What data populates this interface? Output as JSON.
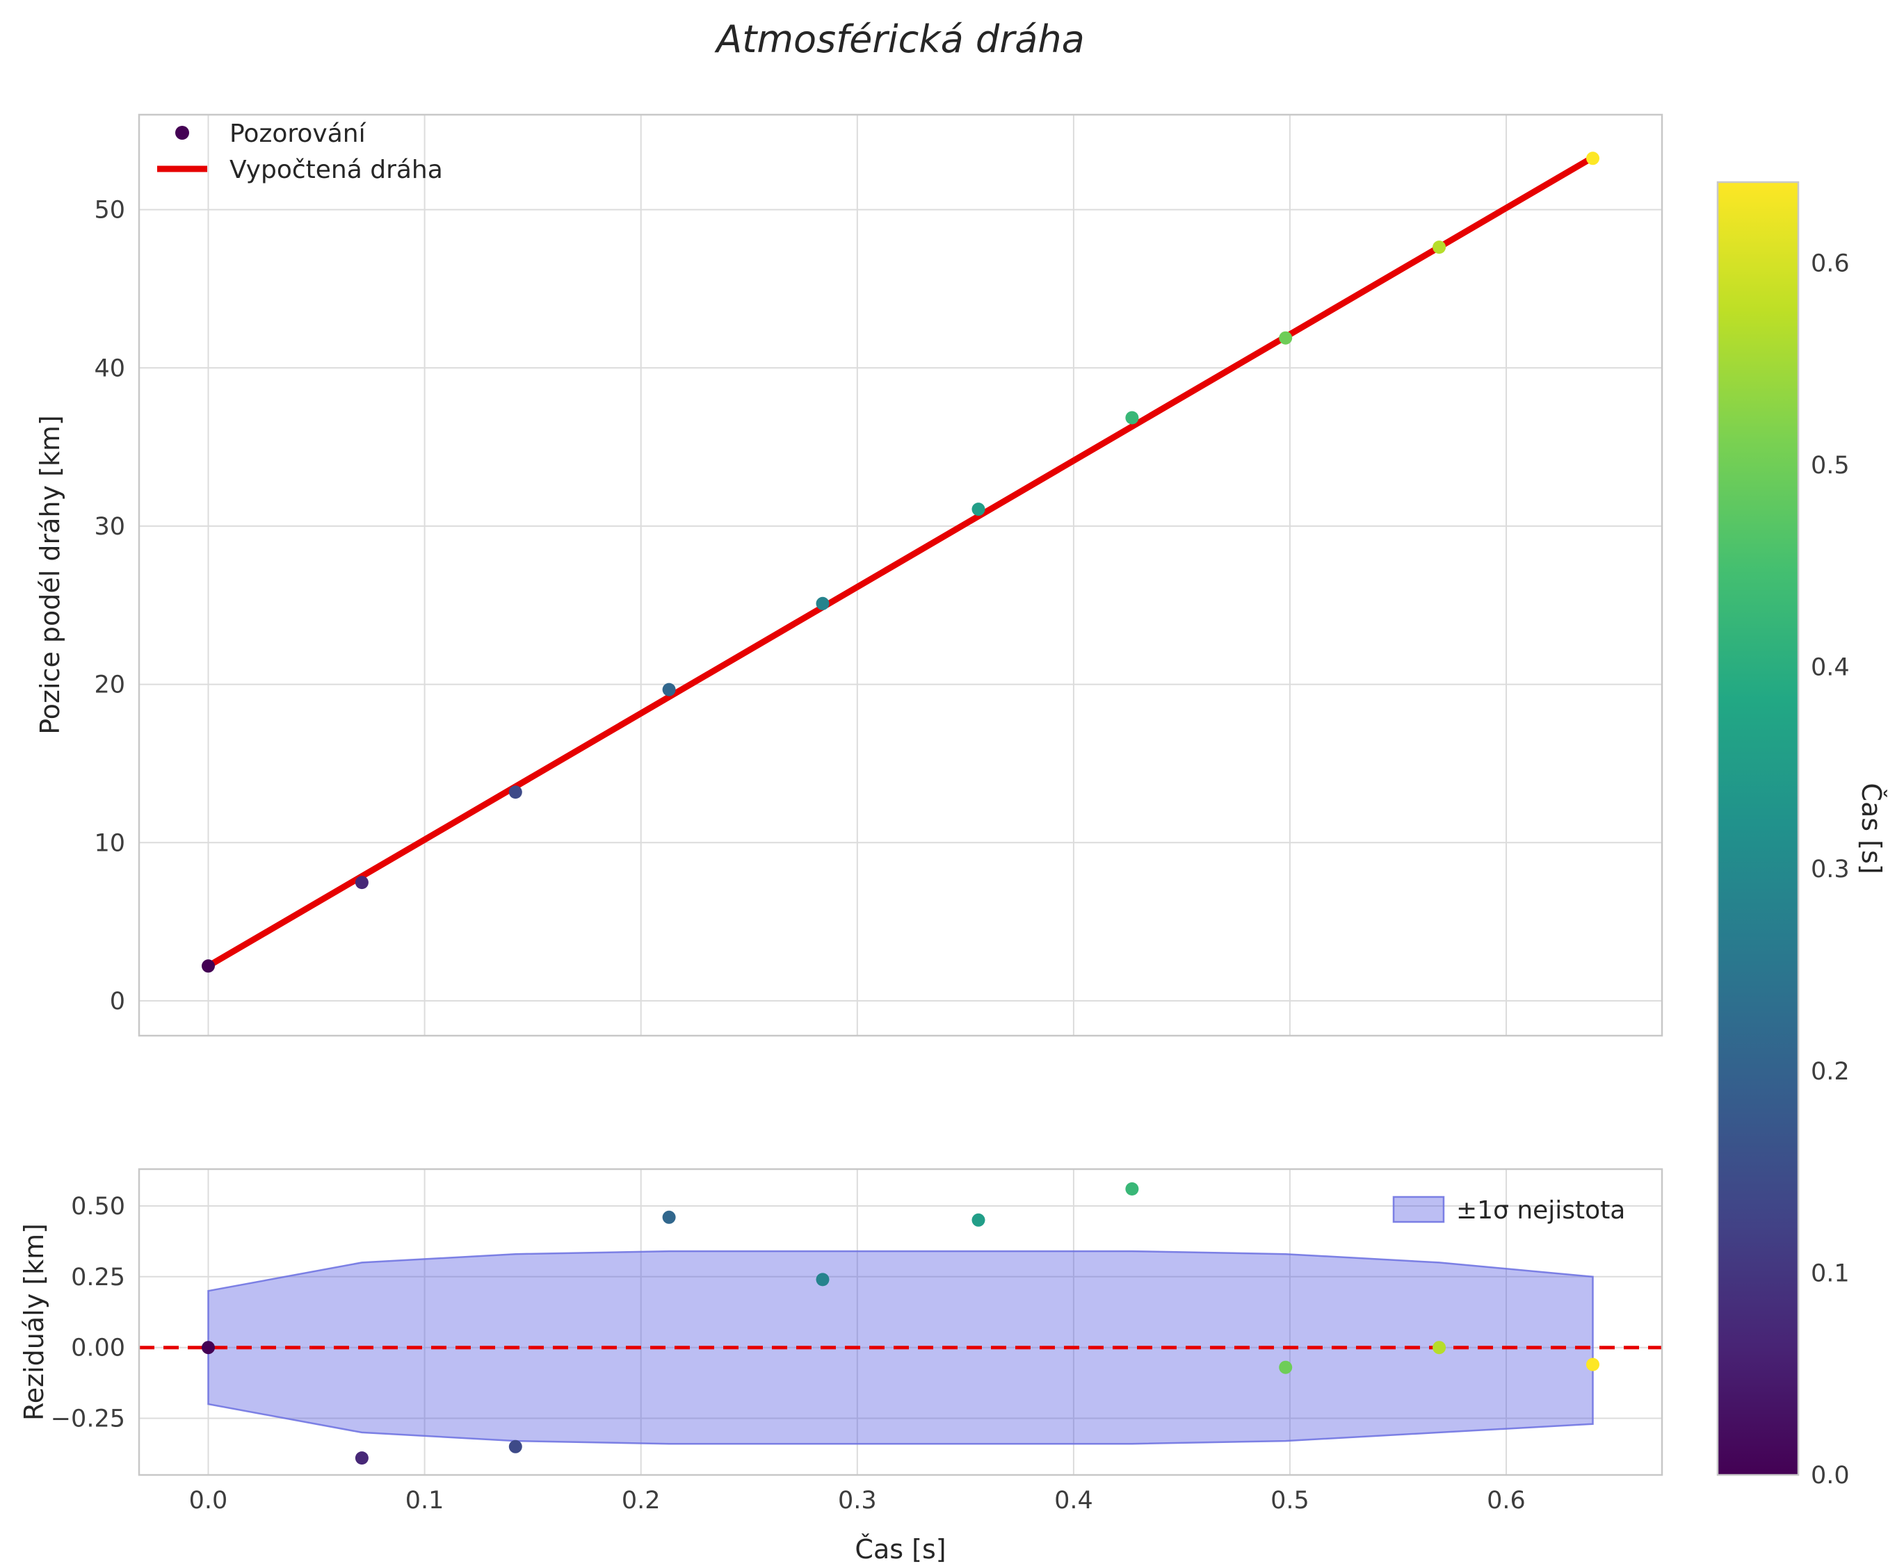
{
  "title": "Atmosférická dráha",
  "colorbar": {
    "label": "Čas [s]",
    "colormap": "viridis",
    "range": [
      0.0,
      0.64
    ],
    "ticks": [
      0.0,
      0.1,
      0.2,
      0.3,
      0.4,
      0.5,
      0.6
    ],
    "tick_labels": [
      "0.0",
      "0.1",
      "0.2",
      "0.3",
      "0.4",
      "0.5",
      "0.6"
    ]
  },
  "chart_data": [
    {
      "type": "scatter",
      "name": "trajectory",
      "title": "Atmosférická dráha",
      "xlabel": "",
      "ylabel": "Pozice podél dráhy [km]",
      "colored_by": "Čas [s]",
      "xlim": [
        -0.032,
        0.672
      ],
      "ylim": [
        -2.2,
        56.0
      ],
      "xticks": [
        0.0,
        0.1,
        0.2,
        0.3,
        0.4,
        0.5,
        0.6
      ],
      "xtick_labels": [
        "",
        "",
        "",
        "",
        "",
        "",
        ""
      ],
      "yticks": [
        0,
        10,
        20,
        30,
        40,
        50
      ],
      "ytick_labels": [
        "0",
        "10",
        "20",
        "30",
        "40",
        "50"
      ],
      "grid": true,
      "legend_position": "upper left",
      "points_label": "Pozorování",
      "x": [
        0.0,
        0.071,
        0.142,
        0.213,
        0.284,
        0.356,
        0.427,
        0.498,
        0.569,
        0.64
      ],
      "y": [
        2.2,
        7.48,
        13.19,
        19.67,
        25.11,
        31.07,
        36.85,
        41.89,
        47.63,
        53.24
      ],
      "fit_line": {
        "label": "Vypočtená dráha",
        "color": "#e60000",
        "x": [
          0.0,
          0.64
        ],
        "y": [
          2.2,
          53.3
        ]
      }
    },
    {
      "type": "scatter",
      "name": "residuals",
      "xlabel": "Čas [s]",
      "ylabel": "Reziduály [km]",
      "colored_by": "Čas [s]",
      "xlim": [
        -0.032,
        0.672
      ],
      "ylim": [
        -0.45,
        0.63
      ],
      "xticks": [
        0.0,
        0.1,
        0.2,
        0.3,
        0.4,
        0.5,
        0.6
      ],
      "xtick_labels": [
        "0.0",
        "0.1",
        "0.2",
        "0.3",
        "0.4",
        "0.5",
        "0.6"
      ],
      "yticks": [
        -0.25,
        0.0,
        0.25,
        0.5
      ],
      "ytick_labels": [
        "−0.25",
        "0.00",
        "0.25",
        "0.50"
      ],
      "grid": true,
      "legend_position": "upper right",
      "x": [
        0.0,
        0.071,
        0.142,
        0.213,
        0.284,
        0.356,
        0.427,
        0.498,
        0.569,
        0.64
      ],
      "y": [
        0.0,
        -0.39,
        -0.35,
        0.46,
        0.24,
        0.45,
        0.56,
        -0.07,
        0.0,
        -0.06
      ],
      "zero_line": {
        "color": "#e60000",
        "style": "dashed",
        "y": 0.0
      },
      "band": {
        "label": "±1σ nejistota",
        "upper": [
          0.2,
          0.3,
          0.33,
          0.34,
          0.34,
          0.34,
          0.34,
          0.33,
          0.3,
          0.25
        ],
        "lower": [
          -0.2,
          -0.3,
          -0.33,
          -0.34,
          -0.34,
          -0.34,
          -0.34,
          -0.33,
          -0.3,
          -0.27
        ]
      }
    }
  ]
}
